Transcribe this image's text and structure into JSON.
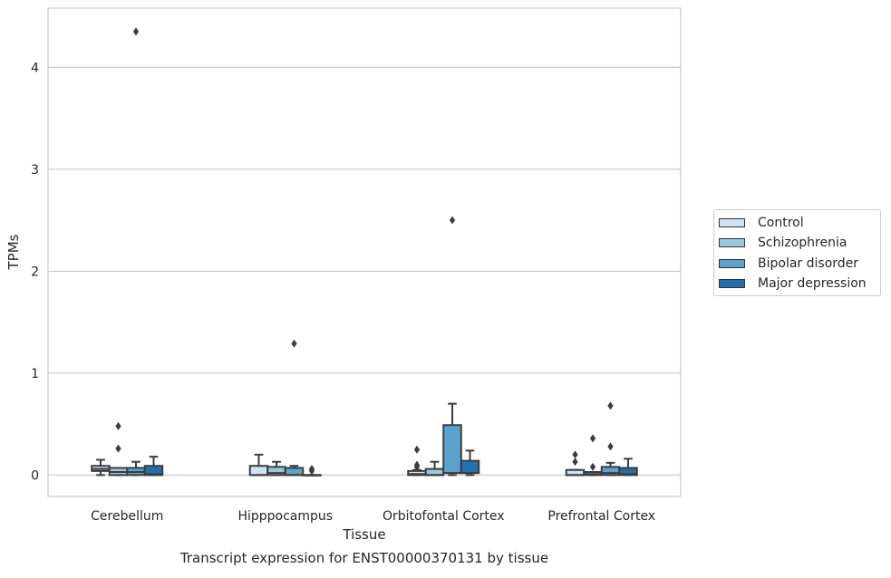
{
  "chart_data": {
    "type": "box",
    "title": "Transcript expression for ENST00000370131 by tissue",
    "xlabel": "Tissue",
    "ylabel": "TPMs",
    "ylim": [
      -0.21,
      4.58
    ],
    "yticks": [
      0,
      1,
      2,
      3,
      4
    ],
    "grid": "horizontal",
    "legend_position": "right",
    "categories": [
      "Cerebellum",
      "Hipppocampus",
      "Orbitofontal Cortex",
      "Prefrontal Cortex"
    ],
    "series": [
      {
        "name": "Control",
        "color": "#d1e2f2",
        "boxes": [
          {
            "whislo": 0.0,
            "q1": 0.04,
            "med": 0.06,
            "q3": 0.09,
            "whishi": 0.15,
            "fliers": []
          },
          {
            "whislo": 0.0,
            "q1": 0.0,
            "med": 0.0,
            "q3": 0.09,
            "whishi": 0.2,
            "fliers": []
          },
          {
            "whislo": 0.0,
            "q1": 0.0,
            "med": 0.01,
            "q3": 0.04,
            "whishi": 0.05,
            "fliers": [
              0.08,
              0.1,
              0.25
            ]
          },
          {
            "whislo": 0.0,
            "q1": 0.0,
            "med": 0.0,
            "q3": 0.05,
            "whishi": 0.05,
            "fliers": [
              0.13,
              0.2
            ]
          }
        ]
      },
      {
        "name": "Schizophrenia",
        "color": "#9ac8e0",
        "boxes": [
          {
            "whislo": 0.0,
            "q1": 0.0,
            "med": 0.03,
            "q3": 0.07,
            "whishi": 0.07,
            "fliers": [
              0.26,
              0.48
            ]
          },
          {
            "whislo": 0.0,
            "q1": 0.0,
            "med": 0.02,
            "q3": 0.08,
            "whishi": 0.13,
            "fliers": []
          },
          {
            "whislo": 0.0,
            "q1": 0.0,
            "med": 0.0,
            "q3": 0.06,
            "whishi": 0.13,
            "fliers": []
          },
          {
            "whislo": 0.0,
            "q1": 0.0,
            "med": 0.01,
            "q3": 0.03,
            "whishi": 0.03,
            "fliers": [
              0.08,
              0.36
            ]
          }
        ]
      },
      {
        "name": "Bipolar disorder",
        "color": "#5ba3cf",
        "boxes": [
          {
            "whislo": 0.0,
            "q1": 0.0,
            "med": 0.03,
            "q3": 0.07,
            "whishi": 0.13,
            "fliers": [
              4.35
            ]
          },
          {
            "whislo": 0.0,
            "q1": 0.0,
            "med": 0.0,
            "q3": 0.07,
            "whishi": 0.09,
            "fliers": [
              1.29
            ]
          },
          {
            "whislo": 0.0,
            "q1": 0.02,
            "med": 0.02,
            "q3": 0.49,
            "whishi": 0.7,
            "fliers": [
              2.5
            ]
          },
          {
            "whislo": 0.0,
            "q1": 0.0,
            "med": 0.02,
            "q3": 0.08,
            "whishi": 0.12,
            "fliers": [
              0.28,
              0.68
            ]
          }
        ]
      },
      {
        "name": "Major depression",
        "color": "#2070b4",
        "boxes": [
          {
            "whislo": 0.0,
            "q1": 0.0,
            "med": 0.01,
            "q3": 0.09,
            "whishi": 0.18,
            "fliers": []
          },
          {
            "whislo": 0.0,
            "q1": 0.0,
            "med": 0.0,
            "q3": 0.0,
            "whishi": 0.0,
            "fliers": [
              0.04,
              0.06
            ]
          },
          {
            "whislo": 0.0,
            "q1": 0.02,
            "med": 0.02,
            "q3": 0.14,
            "whishi": 0.24,
            "fliers": []
          },
          {
            "whislo": 0.0,
            "q1": 0.0,
            "med": 0.01,
            "q3": 0.07,
            "whishi": 0.16,
            "fliers": []
          }
        ]
      }
    ]
  }
}
